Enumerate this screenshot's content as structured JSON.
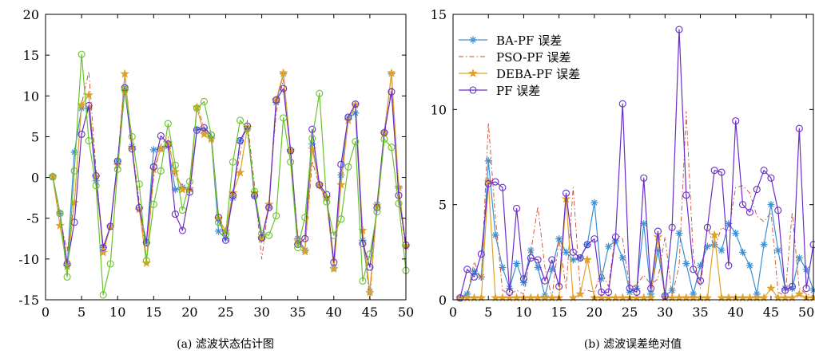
{
  "chart_data": [
    {
      "type": "line",
      "caption": "(a) 滤波状态估计图",
      "xlim": [
        0,
        50
      ],
      "ylim": [
        -15,
        20
      ],
      "xticks": [
        0,
        5,
        10,
        15,
        20,
        25,
        30,
        35,
        40,
        45,
        50
      ],
      "yticks": [
        -15,
        -10,
        -5,
        0,
        5,
        10,
        15,
        20
      ],
      "grid": false,
      "x": [
        1,
        2,
        3,
        4,
        5,
        6,
        7,
        8,
        9,
        10,
        11,
        12,
        13,
        14,
        15,
        16,
        17,
        18,
        19,
        20,
        21,
        22,
        23,
        24,
        25,
        26,
        27,
        28,
        29,
        30,
        31,
        32,
        33,
        34,
        35,
        36,
        37,
        38,
        39,
        40,
        41,
        42,
        43,
        44,
        45,
        46,
        47,
        48,
        49,
        50
      ],
      "series": [
        {
          "color": "#3a8fd6",
          "marker": "asterisk",
          "values": [
            0.1,
            -4.4,
            -10.8,
            3.1,
            8.5,
            8.5,
            -0.4,
            -8.6,
            -6,
            2,
            10.7,
            3.8,
            -3.9,
            -8,
            3.4,
            3.6,
            3.8,
            -1.5,
            -1.2,
            -1.5,
            5.9,
            5.8,
            4.8,
            -6.6,
            -7.5,
            -2.5,
            4.5,
            6,
            -2.3,
            -7.6,
            -3.6,
            9.2,
            12.7,
            3.2,
            -7.5,
            -8.9,
            4.1,
            -1,
            -2.6,
            -11.1,
            0.3,
            7.3,
            7.9,
            -7.7,
            -14,
            -3.3,
            5.5,
            12.7,
            -1.3,
            -8.5
          ]
        },
        {
          "color": "#cc4a2a",
          "marker": "none",
          "dash": "6,3,1.5,3",
          "values": [
            0.1,
            -5,
            -9,
            -3,
            9,
            13,
            1,
            -9,
            -6,
            2,
            13,
            4,
            -3,
            -10,
            0,
            4,
            5,
            0,
            -1,
            -2,
            9,
            6,
            5,
            -5,
            -7,
            -2,
            3,
            7,
            -1,
            -10,
            -3,
            8,
            12,
            3,
            -7,
            -9,
            2,
            -1,
            -3,
            -11,
            -1,
            7,
            9,
            -7,
            -15,
            -3,
            5,
            11,
            -2,
            -9
          ]
        },
        {
          "color": "#e0a128",
          "marker": "star",
          "values": [
            0.1,
            -5.9,
            -10.9,
            -3.1,
            8.9,
            10.1,
            0.1,
            -9.2,
            -6,
            1.5,
            12.7,
            3.7,
            -3.9,
            -10.5,
            1,
            3.5,
            4.2,
            0.7,
            -1.5,
            -1.4,
            8.6,
            5.3,
            4.7,
            -5,
            -6.6,
            -1.9,
            0.6,
            6.1,
            -1.9,
            -7.5,
            -3.3,
            9.5,
            12.8,
            3.3,
            -7.8,
            -9.1,
            3.5,
            -0.9,
            -2.5,
            -11.2,
            -0.9,
            7,
            8.9,
            -6.5,
            -14.1,
            -3.4,
            5.4,
            12.8,
            -1.2,
            -8.4
          ]
        },
        {
          "color": "#6a2dc8",
          "marker": "circle",
          "values": [
            0.1,
            -4.4,
            -10.6,
            -5.5,
            5.3,
            8.8,
            0.2,
            -8.6,
            -6,
            2,
            11,
            3.5,
            -3.7,
            -8,
            1.3,
            5.1,
            4.1,
            -4.5,
            -6.5,
            -1.8,
            5.8,
            6.1,
            5.2,
            -4.9,
            -7.7,
            -2.2,
            4.5,
            6.3,
            -2.2,
            -7.4,
            -3.7,
            9.5,
            10.9,
            3.3,
            -8.2,
            -7.5,
            5.9,
            -0.9,
            -2.1,
            -10.4,
            1.6,
            7.4,
            9,
            -8.1,
            -11,
            -3.7,
            5.5,
            10.5,
            -2.2,
            -8.3
          ]
        },
        {
          "color": "#6ac32a",
          "marker": "circle",
          "values": [
            0.1,
            -4.4,
            -12.2,
            0.8,
            15.1,
            4.5,
            -1,
            -14.4,
            -10.6,
            1,
            10.8,
            5,
            -0.8,
            -10.2,
            -3.3,
            0.8,
            6.6,
            1.5,
            -4,
            -0.5,
            8.5,
            9.3,
            5.2,
            -5.5,
            -6.9,
            1.9,
            7,
            6,
            -1.7,
            -6.9,
            -7.1,
            -4.7,
            7.3,
            1.9,
            -8.6,
            -4.9,
            4.8,
            10.3,
            -3,
            -7.1,
            -5.1,
            1.3,
            4.4,
            -12.7,
            -9.4,
            -4.2,
            4.7,
            3.7,
            -3.2,
            -11.4
          ]
        }
      ]
    },
    {
      "type": "line",
      "caption": "(b) 滤波误差绝对值",
      "xlim": [
        0,
        51
      ],
      "ylim": [
        0,
        15
      ],
      "xticks": [
        0,
        5,
        10,
        15,
        20,
        25,
        30,
        35,
        40,
        45,
        50
      ],
      "yticks": [
        0,
        5,
        10,
        15
      ],
      "grid": false,
      "legend_position": "top-left",
      "x": [
        1,
        2,
        3,
        4,
        5,
        6,
        7,
        8,
        9,
        10,
        11,
        12,
        13,
        14,
        15,
        16,
        17,
        18,
        19,
        20,
        21,
        22,
        23,
        24,
        25,
        26,
        27,
        28,
        29,
        30,
        31,
        32,
        33,
        34,
        35,
        36,
        37,
        38,
        39,
        40,
        41,
        42,
        43,
        44,
        45,
        46,
        47,
        48,
        49,
        50,
        51
      ],
      "series": [
        {
          "name": "BA-PF 误差",
          "color": "#3a8fd6",
          "marker": "asterisk",
          "values": [
            0.1,
            0.3,
            1.5,
            1.2,
            7.3,
            3.4,
            1.7,
            0.6,
            1.9,
            0.9,
            2.6,
            1.7,
            0.2,
            1.6,
            3.2,
            2.5,
            2.1,
            2.2,
            2.9,
            5.1,
            1.1,
            2.8,
            3.1,
            2.2,
            0.4,
            0.6,
            4,
            0.3,
            2.6,
            0.2,
            0.5,
            3.5,
            1.9,
            0.3,
            1.8,
            2.8,
            2.9,
            2.6,
            4,
            3.5,
            2.5,
            1.8,
            0.3,
            2.9,
            5,
            2.6,
            0.6,
            0.6,
            2.2,
            1.6,
            0.5
          ]
        },
        {
          "name": "PSO-PF 误差",
          "color": "#cc4a2a",
          "marker": "none",
          "dash": "6,3,1.5,3",
          "values": [
            0.1,
            0.2,
            2,
            1,
            9.3,
            4.3,
            0.5,
            0.3,
            0.5,
            0.3,
            2.5,
            4.9,
            1.7,
            0.1,
            3.2,
            0.6,
            5.9,
            0.5,
            0.5,
            0.4,
            1.5,
            0.7,
            3.5,
            3.2,
            0.6,
            0.8,
            1.3,
            0.8,
            1.1,
            3.3,
            0.2,
            1.8,
            9.9,
            2.3,
            0.6,
            3.9,
            2.7,
            3.8,
            3.6,
            5.9,
            6,
            5.6,
            4.4,
            4.1,
            4.6,
            0.4,
            0.2,
            4.6,
            0.6,
            0.3,
            0.2
          ]
        },
        {
          "name": "DEBA-PF 误差",
          "color": "#e0a128",
          "marker": "star",
          "values": [
            0.1,
            0.1,
            0.1,
            0.1,
            6.2,
            0.1,
            0.1,
            0.1,
            0.1,
            0.1,
            0.1,
            0.1,
            0.1,
            0.1,
            0.1,
            5.3,
            0.1,
            0.3,
            2.1,
            0.1,
            0.1,
            0.1,
            0.1,
            0.1,
            0.1,
            0.1,
            0.1,
            0.1,
            3.3,
            0.1,
            0.1,
            0.1,
            0.1,
            0.1,
            0.1,
            0.1,
            3.4,
            0.1,
            0.1,
            0.1,
            0.1,
            0.1,
            0.1,
            0.1,
            0.6,
            0.1,
            0.1,
            0.1,
            0.3,
            0.1,
            0.1
          ]
        },
        {
          "name": "PF 误差",
          "color": "#6a2dc8",
          "marker": "circle",
          "values": [
            0.1,
            1.6,
            1.2,
            2.4,
            6.1,
            6.2,
            5.9,
            0.4,
            4.8,
            1.1,
            2.2,
            2.1,
            1,
            2.1,
            0.7,
            5.6,
            2.5,
            2.2,
            2.9,
            3.2,
            0.4,
            0.4,
            3.3,
            10.3,
            0.6,
            0.4,
            6.4,
            0.6,
            3.6,
            0.2,
            3.8,
            14.2,
            5.5,
            1.6,
            1,
            3.8,
            6.8,
            6.7,
            1.8,
            9.4,
            5,
            4.6,
            5.8,
            6.8,
            6.4,
            4.7,
            0.5,
            0.7,
            9,
            0.6,
            2.9
          ]
        }
      ]
    }
  ]
}
